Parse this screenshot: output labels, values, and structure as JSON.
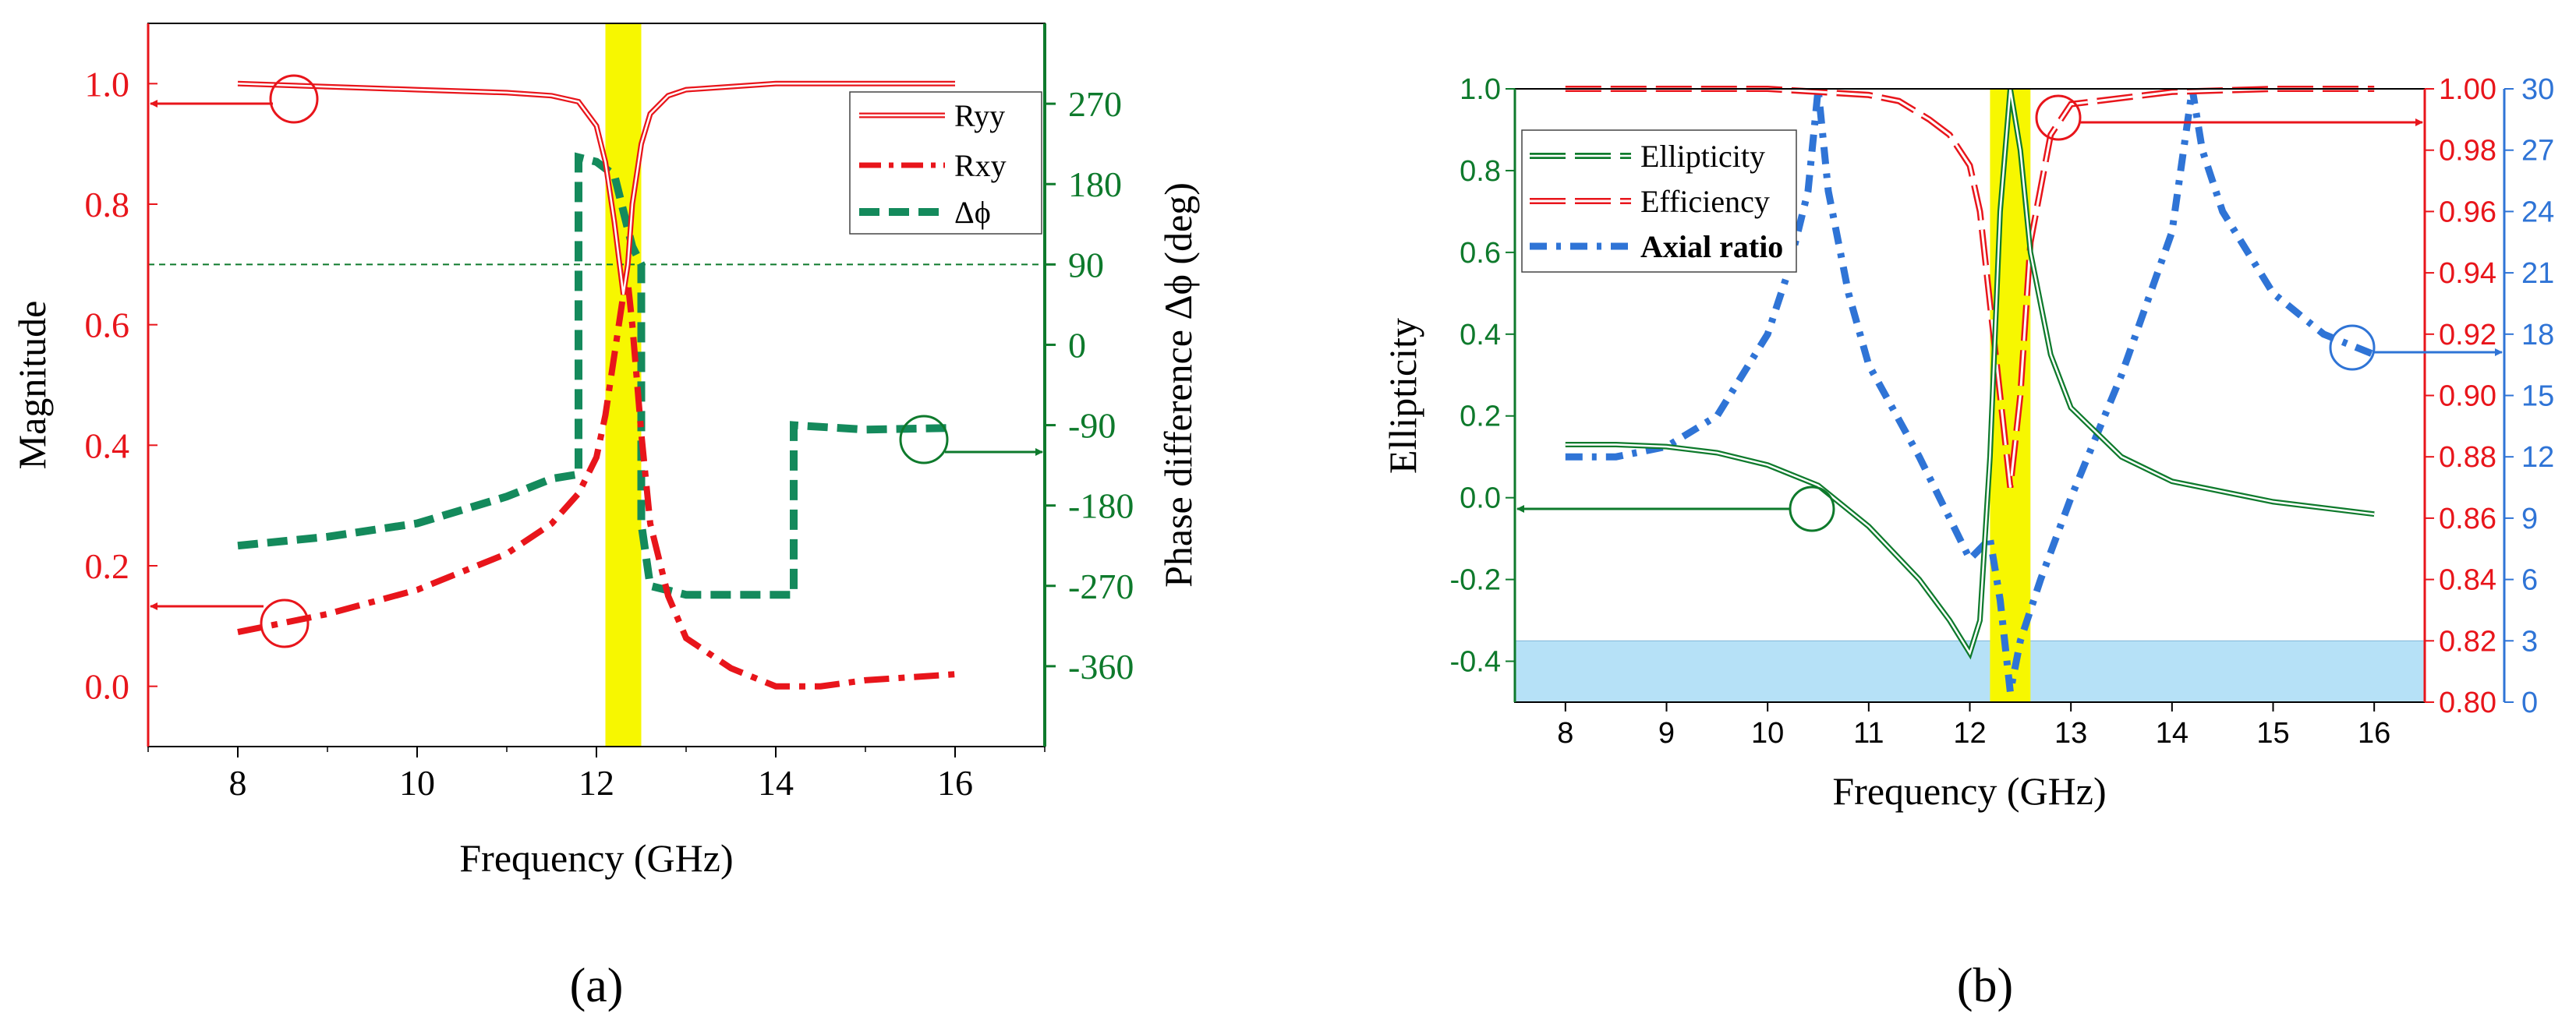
{
  "colors": {
    "red": "#e8151b",
    "green": "#0e7a2c",
    "teal": "#148a5c",
    "blue": "#2f74d6",
    "yellow": "#f7f700",
    "lightblue": "#b6e1f7"
  },
  "chart_data": [
    {
      "id": "a",
      "type": "line",
      "caption": "(a)",
      "xlabel": "Frequency (GHz)",
      "ylabel": "Magnitude",
      "y2label": "Phase difference Δϕ (deg)",
      "xlim": [
        7,
        17
      ],
      "ylim": [
        -0.1,
        1.1
      ],
      "y2lim": [
        -450,
        360
      ],
      "xticks": [
        "8",
        "10",
        "12",
        "14",
        "16"
      ],
      "xtick_values": [
        8,
        10,
        12,
        14,
        16
      ],
      "yticks": [
        "0.0",
        "0.2",
        "0.4",
        "0.6",
        "0.8",
        "1.0"
      ],
      "ytick_values": [
        0,
        0.2,
        0.4,
        0.6,
        0.8,
        1.0
      ],
      "y2ticks": [
        "270",
        "180",
        "90",
        "0",
        "-90",
        "-180",
        "-270",
        "-360"
      ],
      "y2tick_values": [
        270,
        180,
        90,
        0,
        -90,
        -180,
        -270,
        -360
      ],
      "highlight_band": [
        12.1,
        12.5
      ],
      "ref_line_y2": 90,
      "legend": [
        "Ryy",
        "Rxy",
        "Δϕ"
      ],
      "series": [
        {
          "name": "Ryy",
          "axis": "left",
          "x": [
            8,
            9,
            10,
            11,
            11.5,
            11.8,
            12.0,
            12.1,
            12.2,
            12.3,
            12.35,
            12.4,
            12.5,
            12.6,
            12.8,
            13,
            14,
            15,
            16
          ],
          "y": [
            1.0,
            0.995,
            0.99,
            0.985,
            0.98,
            0.97,
            0.93,
            0.87,
            0.77,
            0.65,
            0.7,
            0.8,
            0.9,
            0.95,
            0.98,
            0.99,
            1.0,
            1.0,
            1.0
          ]
        },
        {
          "name": "Rxy",
          "axis": "left",
          "x": [
            8,
            9,
            10,
            11,
            11.5,
            11.8,
            12.0,
            12.1,
            12.2,
            12.3,
            12.35,
            12.4,
            12.5,
            12.6,
            12.8,
            13,
            13.5,
            14,
            14.5,
            15,
            16
          ],
          "y": [
            0.09,
            0.12,
            0.16,
            0.22,
            0.27,
            0.32,
            0.38,
            0.45,
            0.55,
            0.65,
            0.67,
            0.6,
            0.42,
            0.27,
            0.15,
            0.08,
            0.03,
            0.0,
            0.0,
            0.01,
            0.02
          ]
        },
        {
          "name": "Δϕ",
          "axis": "right",
          "x": [
            8,
            9,
            10,
            11,
            11.5,
            11.8,
            11.8,
            12.0,
            12.2,
            12.3,
            12.4,
            12.5,
            12.5,
            12.6,
            13,
            14,
            14.2,
            14.2,
            15,
            16
          ],
          "y": [
            -225,
            -215,
            -200,
            -170,
            -150,
            -145,
            210,
            205,
            190,
            150,
            110,
            90,
            -200,
            -270,
            -280,
            -280,
            -280,
            -90,
            -95,
            -93
          ]
        }
      ]
    },
    {
      "id": "b",
      "type": "line",
      "caption": "(b)",
      "xlabel": "Frequency (GHz)",
      "ylabel": "Ellipticity",
      "xlim": [
        7.5,
        16.5
      ],
      "ylim": [
        -0.5,
        1.0
      ],
      "y2lim": [
        0.8,
        1.0
      ],
      "y3lim": [
        0,
        30
      ],
      "xticks": [
        "8",
        "9",
        "10",
        "11",
        "12",
        "13",
        "14",
        "15",
        "16"
      ],
      "xtick_values": [
        8,
        9,
        10,
        11,
        12,
        13,
        14,
        15,
        16
      ],
      "yticks": [
        "1.0",
        "0.8",
        "0.6",
        "0.4",
        "0.2",
        "0.0",
        "-0.2",
        "-0.4"
      ],
      "ytick_values": [
        1.0,
        0.8,
        0.6,
        0.4,
        0.2,
        0.0,
        -0.2,
        -0.4
      ],
      "y2ticks": [
        "1.00",
        "0.98",
        "0.96",
        "0.94",
        "0.92",
        "0.90",
        "0.88",
        "0.86",
        "0.84",
        "0.82",
        "0.80"
      ],
      "y2tick_values": [
        1.0,
        0.98,
        0.96,
        0.94,
        0.92,
        0.9,
        0.88,
        0.86,
        0.84,
        0.82,
        0.8
      ],
      "y3ticks": [
        "30",
        "27",
        "24",
        "21",
        "18",
        "15",
        "12",
        "9",
        "6",
        "3",
        "0"
      ],
      "y3tick_values": [
        30,
        27,
        24,
        21,
        18,
        15,
        12,
        9,
        6,
        3,
        0
      ],
      "highlight_band": [
        12.2,
        12.6
      ],
      "shaded_region_y": [
        -0.5,
        -0.35
      ],
      "legend": [
        "Ellipticity",
        "Efficiency",
        "Axial ratio"
      ],
      "series": [
        {
          "name": "Ellipticity",
          "axis": "left",
          "x": [
            8,
            8.5,
            9,
            9.5,
            10,
            10.5,
            11,
            11.5,
            11.8,
            12.0,
            12.1,
            12.2,
            12.3,
            12.4,
            12.5,
            12.6,
            12.8,
            13,
            13.5,
            14,
            15,
            16
          ],
          "y": [
            0.13,
            0.13,
            0.125,
            0.11,
            0.08,
            0.03,
            -0.07,
            -0.2,
            -0.3,
            -0.38,
            -0.3,
            0.1,
            0.7,
            1.0,
            0.85,
            0.6,
            0.35,
            0.22,
            0.1,
            0.04,
            -0.01,
            -0.04
          ]
        },
        {
          "name": "Efficiency",
          "axis": "right",
          "x": [
            8,
            9,
            10,
            10.5,
            11,
            11.3,
            11.6,
            11.8,
            12.0,
            12.1,
            12.2,
            12.3,
            12.4,
            12.5,
            12.6,
            12.8,
            13,
            14,
            15,
            16
          ],
          "y": [
            1.0,
            1.0,
            1.0,
            0.999,
            0.998,
            0.996,
            0.99,
            0.985,
            0.975,
            0.96,
            0.93,
            0.9,
            0.87,
            0.9,
            0.95,
            0.985,
            0.995,
            0.999,
            1.0,
            1.0
          ]
        },
        {
          "name": "Axial ratio",
          "axis": "right2",
          "x": [
            8,
            8.5,
            9,
            9.5,
            10,
            10.2,
            10.4,
            10.5,
            10.6,
            10.8,
            11,
            11.5,
            12.0,
            12.2,
            12.3,
            12.4,
            12.5,
            12.7,
            13,
            13.5,
            14,
            14.2,
            14.3,
            14.5,
            15,
            15.5,
            16
          ],
          "y": [
            12,
            12,
            12.5,
            14,
            18,
            21,
            25,
            30,
            25,
            20,
            16.5,
            12,
            7,
            8,
            5,
            0.5,
            3,
            6,
            10,
            16,
            23,
            30,
            27,
            24,
            20,
            18,
            17
          ]
        }
      ]
    }
  ]
}
